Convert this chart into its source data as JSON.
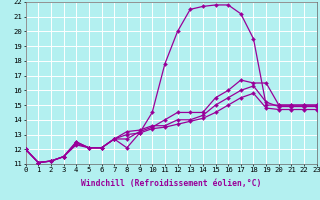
{
  "background_color": "#b3f0f0",
  "grid_color": "#ffffff",
  "line_color": "#990099",
  "markersize": 2.0,
  "linewidth": 0.9,
  "xlabel": "Windchill (Refroidissement éolien,°C)",
  "xlabel_fontsize": 5.8,
  "tick_fontsize": 5.2,
  "xlim": [
    0,
    23
  ],
  "ylim": [
    11,
    22
  ],
  "xticks": [
    0,
    1,
    2,
    3,
    4,
    5,
    6,
    7,
    8,
    9,
    10,
    11,
    12,
    13,
    14,
    15,
    16,
    17,
    18,
    19,
    20,
    21,
    22,
    23
  ],
  "yticks": [
    11,
    12,
    13,
    14,
    15,
    16,
    17,
    18,
    19,
    20,
    21,
    22
  ],
  "curves": [
    {
      "x": [
        0,
        1,
        2,
        3,
        4,
        5,
        6,
        7,
        8,
        9,
        10,
        11,
        12,
        13,
        14,
        15,
        16,
        17,
        18,
        19,
        20,
        21,
        22,
        23
      ],
      "y": [
        12.0,
        11.1,
        11.2,
        11.5,
        12.5,
        12.1,
        12.1,
        12.7,
        12.1,
        13.1,
        14.5,
        17.8,
        20.0,
        21.5,
        21.7,
        21.8,
        21.8,
        21.2,
        19.5,
        15.0,
        15.0,
        15.0,
        15.0,
        15.0
      ]
    },
    {
      "x": [
        0,
        1,
        2,
        3,
        4,
        5,
        6,
        7,
        8,
        9,
        10,
        11,
        12,
        13,
        14,
        15,
        16,
        17,
        18,
        19,
        20,
        21,
        22,
        23
      ],
      "y": [
        12.0,
        11.1,
        11.2,
        11.5,
        12.5,
        12.1,
        12.1,
        12.7,
        12.7,
        13.2,
        13.5,
        14.0,
        14.5,
        14.5,
        14.5,
        15.5,
        16.0,
        16.7,
        16.5,
        16.5,
        15.0,
        15.0,
        15.0,
        15.0
      ]
    },
    {
      "x": [
        0,
        1,
        2,
        3,
        4,
        5,
        6,
        7,
        8,
        9,
        10,
        11,
        12,
        13,
        14,
        15,
        16,
        17,
        18,
        19,
        20,
        21,
        22,
        23
      ],
      "y": [
        12.0,
        11.1,
        11.2,
        11.5,
        12.4,
        12.1,
        12.1,
        12.7,
        13.2,
        13.3,
        13.6,
        13.6,
        14.0,
        14.0,
        14.3,
        15.0,
        15.5,
        16.0,
        16.3,
        15.2,
        14.9,
        14.9,
        14.9,
        14.9
      ]
    },
    {
      "x": [
        0,
        1,
        2,
        3,
        4,
        5,
        6,
        7,
        8,
        9,
        10,
        11,
        12,
        13,
        14,
        15,
        16,
        17,
        18,
        19,
        20,
        21,
        22,
        23
      ],
      "y": [
        12.0,
        11.1,
        11.2,
        11.5,
        12.3,
        12.1,
        12.1,
        12.7,
        13.0,
        13.1,
        13.4,
        13.5,
        13.7,
        13.9,
        14.1,
        14.5,
        15.0,
        15.5,
        15.8,
        14.8,
        14.7,
        14.7,
        14.7,
        14.7
      ]
    }
  ]
}
